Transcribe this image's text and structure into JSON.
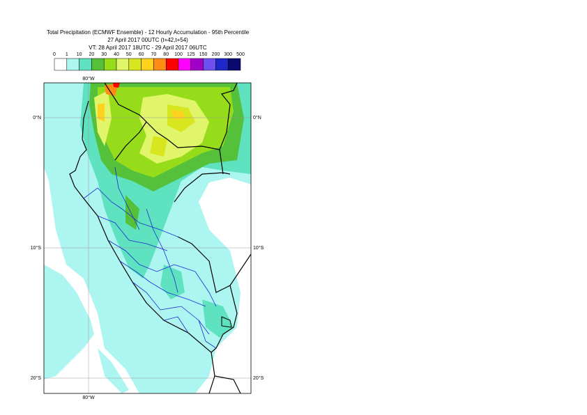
{
  "header": {
    "title": [
      "Total Precipitation (ECMWF Ensemble) - 12 Hourly Accumulation - 95th Percentile",
      "27 April 2017 00UTC (t+42,t+54)",
      "VT: 28 April 2017 18UTC - 29 April 2017 06UTC"
    ]
  },
  "legend": {
    "labels": [
      "0",
      "1",
      "10",
      "20",
      "30",
      "40",
      "50",
      "60",
      "70",
      "80",
      "100",
      "125",
      "150",
      "200",
      "300",
      "500"
    ],
    "colors": [
      "#ffffff",
      "#adf5f0",
      "#5fe2c0",
      "#55c03a",
      "#96dc1a",
      "#e0f56a",
      "#d7e61e",
      "#ffd21e",
      "#ff8c14",
      "#ff0000",
      "#ff00ff",
      "#a000c8",
      "#6e50f0",
      "#1e28c8",
      "#0a0a6e"
    ]
  },
  "map": {
    "lon_labels": [
      "80°W"
    ],
    "lat_labels": [
      "0°N",
      "10°S",
      "20°S"
    ]
  }
}
